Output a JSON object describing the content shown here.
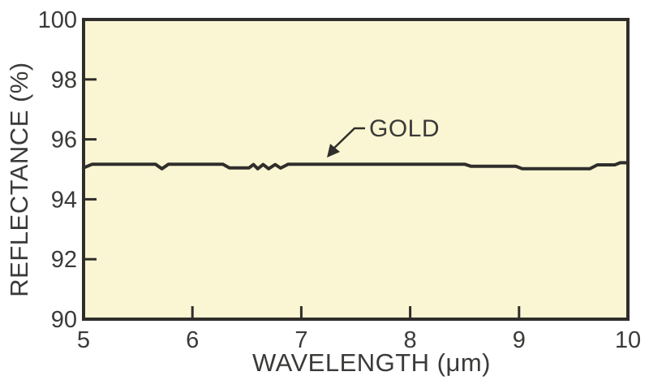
{
  "figure": {
    "background_color": "#ffffff"
  },
  "chart_data": {
    "type": "line",
    "title": "",
    "xlabel": "WAVELENGTH (μm)",
    "ylabel": "REFLECTANCE (%)",
    "xlim": [
      5,
      10
    ],
    "ylim": [
      90,
      100
    ],
    "x_ticks": [
      5,
      6,
      7,
      8,
      9,
      10
    ],
    "y_ticks": [
      90,
      92,
      94,
      96,
      98,
      100
    ],
    "grid": false,
    "legend_position": "none",
    "plot_background_color": "#faf6d3",
    "axis_color": "#2f2e2b",
    "line_color": "#2f2e2b",
    "text_color": "#3b3a38",
    "series": [
      {
        "name": "GOLD",
        "points": [
          [
            5.0,
            95.05
          ],
          [
            5.08,
            95.17
          ],
          [
            5.66,
            95.17
          ],
          [
            5.72,
            95.02
          ],
          [
            5.78,
            95.17
          ],
          [
            6.28,
            95.17
          ],
          [
            6.34,
            95.05
          ],
          [
            6.52,
            95.05
          ],
          [
            6.56,
            95.16
          ],
          [
            6.6,
            95.02
          ],
          [
            6.65,
            95.16
          ],
          [
            6.7,
            95.02
          ],
          [
            6.76,
            95.16
          ],
          [
            6.81,
            95.04
          ],
          [
            6.88,
            95.17
          ],
          [
            8.5,
            95.17
          ],
          [
            8.56,
            95.1
          ],
          [
            8.97,
            95.1
          ],
          [
            9.03,
            95.02
          ],
          [
            9.65,
            95.02
          ],
          [
            9.72,
            95.15
          ],
          [
            9.88,
            95.15
          ],
          [
            9.93,
            95.22
          ],
          [
            10.0,
            95.22
          ]
        ]
      }
    ],
    "annotation": {
      "label": "GOLD",
      "points_to_series": "GOLD",
      "arrow_tip": [
        7.24,
        95.35
      ]
    }
  }
}
